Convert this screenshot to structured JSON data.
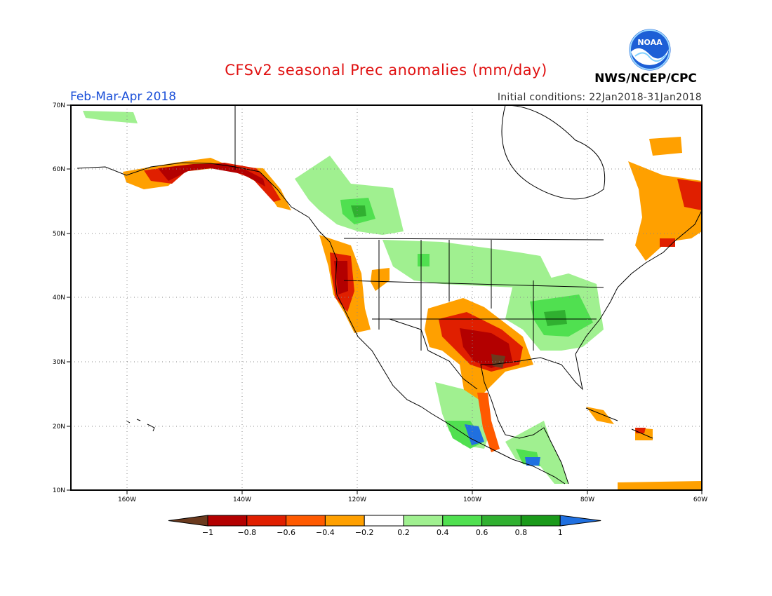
{
  "header": {
    "title": "CFSv2 seasonal Prec anomalies (mm/day)",
    "season": "Feb-Mar-Apr 2018",
    "init_conditions": "Initial conditions: 22Jan2018-31Jan2018",
    "org": "NWS/NCEP/CPC",
    "logo_text": "NOAA"
  },
  "map": {
    "lat_labels": [
      "70N",
      "60N",
      "50N",
      "40N",
      "30N",
      "20N",
      "10N"
    ],
    "lon_labels": [
      "160W",
      "140W",
      "120W",
      "100W",
      "80W",
      "60W"
    ],
    "grid": true
  },
  "legend": {
    "labels": [
      "-1",
      "-0.8",
      "-0.6",
      "-0.4",
      "-0.2",
      "0.2",
      "0.4",
      "0.6",
      "0.8",
      "1"
    ],
    "colors": [
      "#6b3a1e",
      "#b30000",
      "#e01f00",
      "#ff5a00",
      "#ffa000",
      "#ffffff",
      "#a0f090",
      "#50e050",
      "#30b030",
      "#1a9a1a",
      "#2070e0"
    ]
  },
  "colors": {
    "title": "#e01010",
    "season": "#1a4fd8"
  }
}
